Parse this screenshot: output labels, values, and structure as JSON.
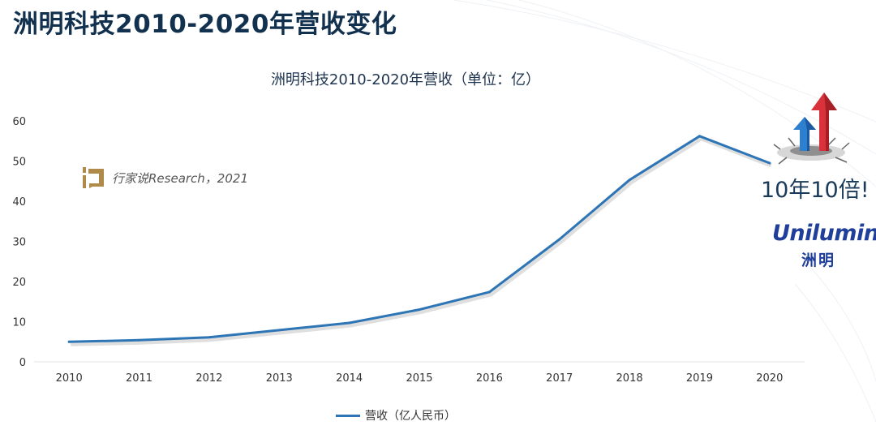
{
  "page_title": "洲明科技2010-2020年营收变化",
  "watermark": {
    "text": "行家说Research，2021"
  },
  "callout": {
    "text": "10年10倍!"
  },
  "brand": {
    "logo_text": "Unilumin",
    "cn_name": "洲明"
  },
  "colors": {
    "title": "#12314f",
    "line": "#2e75b6",
    "arrow_red": "#d9323a",
    "arrow_blue": "#2e7fd0",
    "brand": "#1f3f9a"
  },
  "chart_data": {
    "type": "line",
    "title": "洲明科技2010-2020年营收（单位：亿）",
    "xlabel": "",
    "ylabel": "",
    "categories": [
      "2010",
      "2011",
      "2012",
      "2013",
      "2014",
      "2015",
      "2016",
      "2017",
      "2018",
      "2019",
      "2020"
    ],
    "series": [
      {
        "name": "营收（亿人民币）",
        "values": [
          5.0,
          5.4,
          6.1,
          7.9,
          9.7,
          13.0,
          17.4,
          30.5,
          45.3,
          56.2,
          49.5
        ]
      }
    ],
    "ylim": [
      0,
      60
    ],
    "yticks": [
      "0",
      "10",
      "20",
      "30",
      "40",
      "50",
      "60"
    ],
    "grid": false,
    "legend": "bottom"
  }
}
